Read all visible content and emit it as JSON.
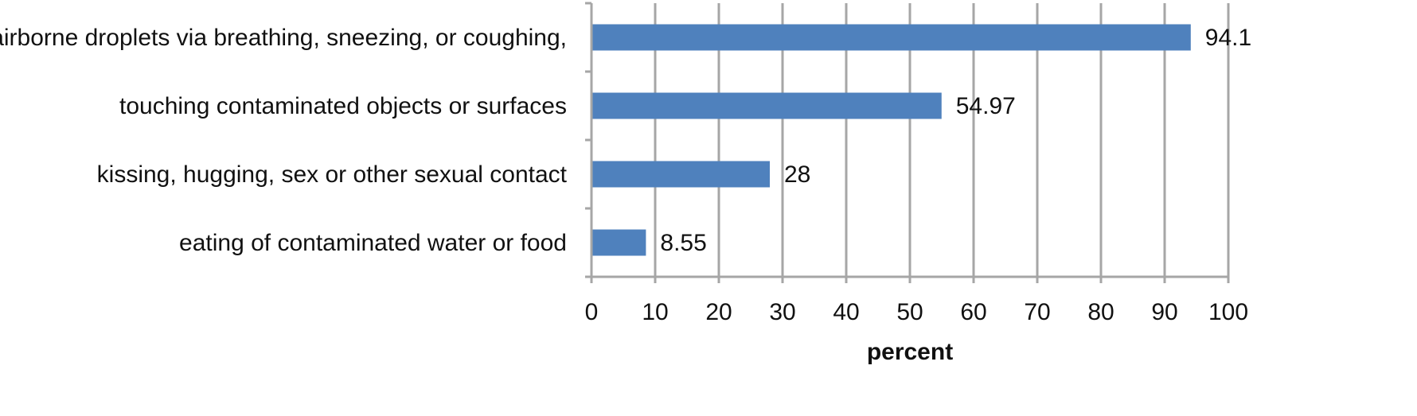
{
  "chart_data": {
    "type": "bar",
    "orientation": "horizontal",
    "categories": [
      "airborne droplets via breathing, sneezing, or coughing,",
      "touching contaminated objects or surfaces",
      "kissing, hugging, sex or other sexual contact",
      "eating of contaminated water or food"
    ],
    "values": [
      94.1,
      54.97,
      28,
      8.55
    ],
    "data_labels": [
      "94.1",
      "54.97",
      "28",
      "8.55"
    ],
    "title": "",
    "xlabel": "percent",
    "ylabel": "",
    "xlim": [
      0,
      100
    ],
    "xticks": [
      0,
      10,
      20,
      30,
      40,
      50,
      60,
      70,
      80,
      90,
      100
    ],
    "grid": "vertical",
    "legend": "none",
    "colors": {
      "bar": "#4F81BD",
      "grid": "#A6A6A6",
      "text": "#111111"
    }
  }
}
